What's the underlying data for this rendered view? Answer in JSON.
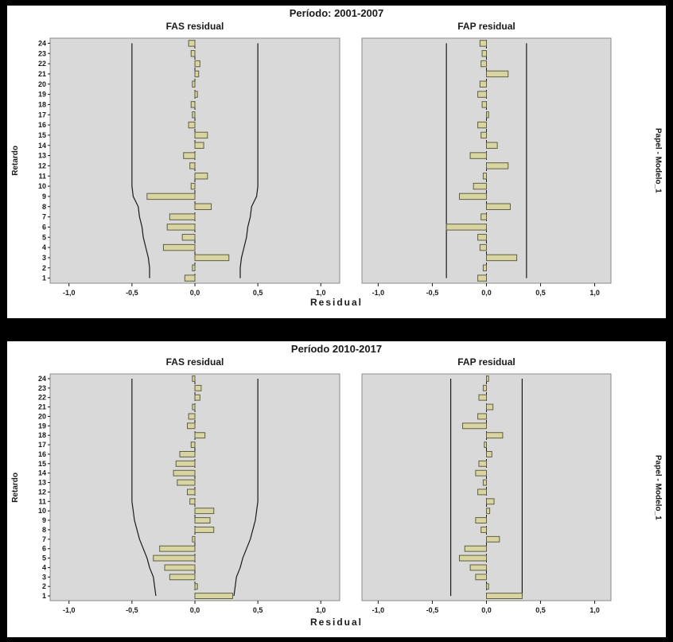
{
  "style": {
    "page_bg": "#000000",
    "panel_bg": "#ffffff",
    "plot_bg": "#d9d9d9",
    "plot_border": "#8a8a8a",
    "bar_fill": "#d8d5a2",
    "bar_stroke": "#5f5f42",
    "line": "#1a1a1a",
    "text": "#1a1a1a"
  },
  "chart_data": [
    {
      "type": "bar",
      "orientation": "horizontal",
      "title": "Período: 2001-2007",
      "xlabel": "Residual",
      "ylabel": "Retardo",
      "right_label": "Papel - Modelo_1",
      "xlim": [
        -1.15,
        1.15
      ],
      "x_ticks": [
        -1.0,
        -0.5,
        0.0,
        0.5,
        1.0
      ],
      "x_tick_labels": [
        "-1,0",
        "-0,5",
        "0,0",
        "0,5",
        "1,0"
      ],
      "lags": [
        1,
        2,
        3,
        4,
        5,
        6,
        7,
        8,
        9,
        10,
        11,
        12,
        13,
        14,
        15,
        16,
        17,
        18,
        19,
        20,
        21,
        22,
        23,
        24
      ],
      "charts": [
        {
          "name": "FAS residual",
          "values": [
            -0.08,
            -0.02,
            0.27,
            -0.25,
            -0.1,
            -0.22,
            -0.2,
            0.13,
            -0.38,
            -0.03,
            0.1,
            -0.04,
            -0.09,
            0.07,
            0.1,
            -0.05,
            -0.02,
            -0.03,
            0.02,
            -0.02,
            0.03,
            0.04,
            -0.03,
            -0.05
          ],
          "conf": [
            0.36,
            0.36,
            0.37,
            0.39,
            0.41,
            0.42,
            0.44,
            0.45,
            0.49,
            0.5,
            0.5,
            0.5,
            0.5,
            0.5,
            0.5,
            0.5,
            0.5,
            0.5,
            0.5,
            0.5,
            0.5,
            0.5,
            0.5,
            0.5
          ]
        },
        {
          "name": "FAP residual",
          "values": [
            -0.08,
            -0.03,
            0.28,
            -0.06,
            -0.08,
            -0.37,
            -0.05,
            0.22,
            -0.25,
            -0.12,
            -0.03,
            0.2,
            -0.15,
            0.1,
            -0.05,
            -0.08,
            0.02,
            -0.04,
            -0.08,
            -0.06,
            0.2,
            -0.05,
            -0.04,
            -0.06
          ],
          "conf": [
            0.37,
            0.37,
            0.37,
            0.37,
            0.37,
            0.37,
            0.37,
            0.37,
            0.37,
            0.37,
            0.37,
            0.37,
            0.37,
            0.37,
            0.37,
            0.37,
            0.37,
            0.37,
            0.37,
            0.37,
            0.37,
            0.37,
            0.37,
            0.37
          ]
        }
      ]
    },
    {
      "type": "bar",
      "orientation": "horizontal",
      "title": "Período 2010-2017",
      "xlabel": "Residual",
      "ylabel": "Retardo",
      "right_label": "Papel - Modelo_1",
      "xlim": [
        -1.15,
        1.15
      ],
      "x_ticks": [
        -1.0,
        -0.5,
        0.0,
        0.5,
        1.0
      ],
      "x_tick_labels": [
        "-1,0",
        "-0,5",
        "0,0",
        "0,5",
        "1,0"
      ],
      "lags": [
        1,
        2,
        3,
        4,
        5,
        6,
        7,
        8,
        9,
        10,
        11,
        12,
        13,
        14,
        15,
        16,
        17,
        18,
        19,
        20,
        21,
        22,
        23,
        24
      ],
      "charts": [
        {
          "name": "FAS residual",
          "values": [
            0.3,
            0.02,
            -0.2,
            -0.24,
            -0.33,
            -0.28,
            -0.02,
            0.15,
            0.12,
            0.15,
            -0.04,
            -0.06,
            -0.14,
            -0.17,
            -0.15,
            -0.12,
            -0.03,
            0.08,
            -0.06,
            -0.05,
            -0.02,
            0.04,
            0.05,
            -0.02
          ],
          "conf": [
            0.31,
            0.32,
            0.33,
            0.36,
            0.38,
            0.41,
            0.44,
            0.46,
            0.48,
            0.49,
            0.5,
            0.5,
            0.5,
            0.5,
            0.5,
            0.5,
            0.5,
            0.5,
            0.5,
            0.5,
            0.5,
            0.5,
            0.5,
            0.5
          ]
        },
        {
          "name": "FAP residual",
          "values": [
            0.33,
            0.02,
            -0.1,
            -0.15,
            -0.25,
            -0.2,
            0.12,
            -0.05,
            -0.1,
            0.03,
            0.07,
            -0.08,
            -0.03,
            -0.1,
            -0.07,
            0.05,
            -0.02,
            0.15,
            -0.22,
            -0.08,
            0.06,
            -0.07,
            -0.03,
            0.02
          ],
          "conf": [
            0.33,
            0.33,
            0.33,
            0.33,
            0.33,
            0.33,
            0.33,
            0.33,
            0.33,
            0.33,
            0.33,
            0.33,
            0.33,
            0.33,
            0.33,
            0.33,
            0.33,
            0.33,
            0.33,
            0.33,
            0.33,
            0.33,
            0.33,
            0.33
          ]
        }
      ]
    }
  ]
}
